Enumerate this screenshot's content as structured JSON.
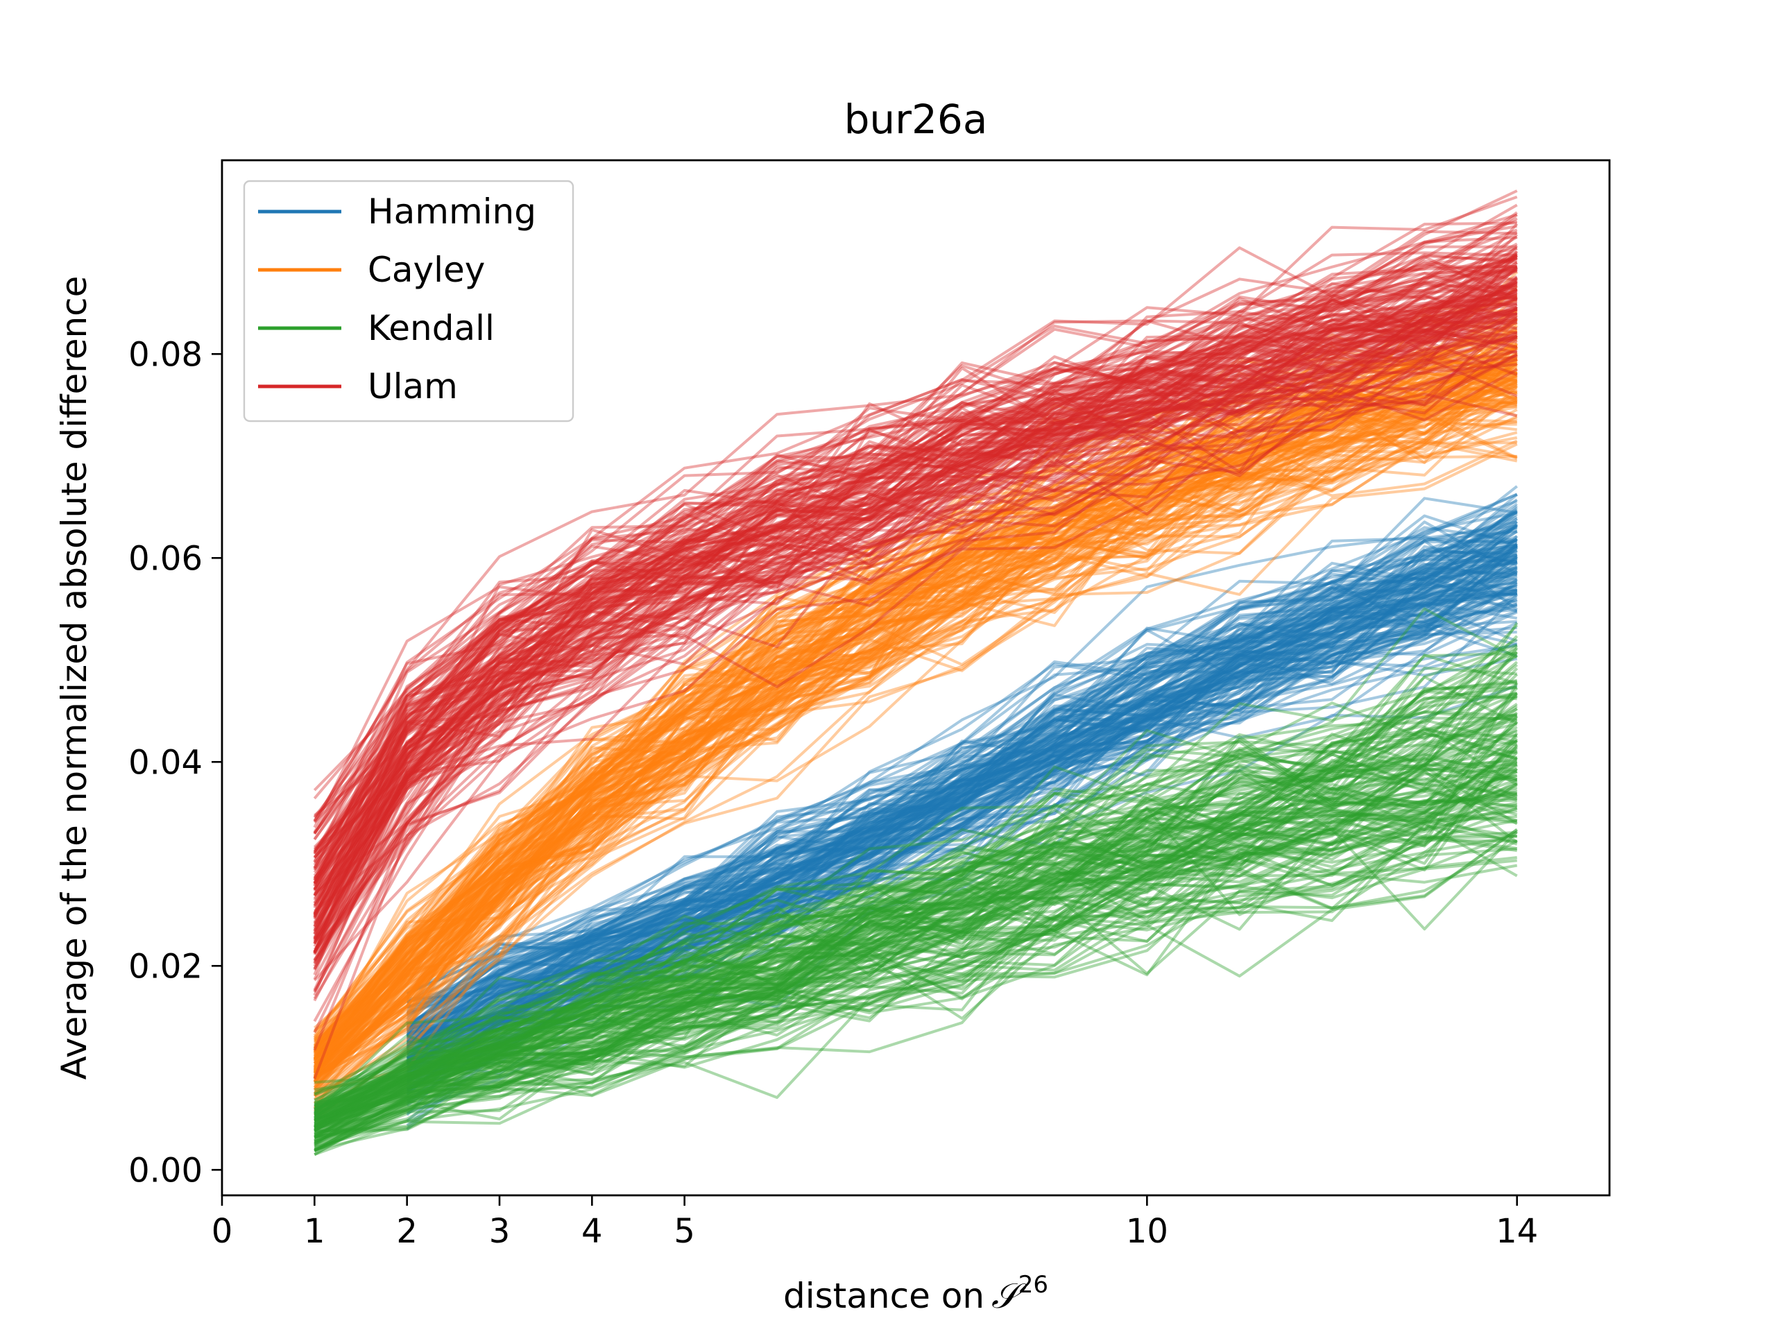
{
  "chart_data": {
    "type": "line",
    "title": "bur26a",
    "xlabel": "distance on",
    "xlabel_symbol": "𝒮",
    "xlabel_superscript": "26",
    "ylabel": "Average of the normalized absolute difference",
    "xlim": [
      0,
      15
    ],
    "ylim": [
      -0.0025,
      0.099
    ],
    "xticks": [
      0,
      1,
      2,
      3,
      4,
      5,
      10,
      14
    ],
    "xtick_labels": [
      "0",
      "1",
      "2",
      "3",
      "4",
      "5",
      "10",
      "14"
    ],
    "yticks": [
      0.0,
      0.02,
      0.04,
      0.06,
      0.08
    ],
    "ytick_labels": [
      "0.00",
      "0.02",
      "0.04",
      "0.06",
      "0.08"
    ],
    "grid": false,
    "legend_position": "top-left",
    "x": [
      1,
      2,
      3,
      4,
      5,
      6,
      7,
      8,
      9,
      10,
      11,
      12,
      13,
      14
    ],
    "series": [
      {
        "name": "Hamming",
        "color": "#1f77b4",
        "x": [
          2,
          3,
          4,
          5,
          6,
          7,
          8,
          9,
          10,
          11,
          12,
          13,
          14
        ],
        "mean": [
          0.0115,
          0.0165,
          0.0205,
          0.024,
          0.028,
          0.0325,
          0.0365,
          0.0415,
          0.046,
          0.0495,
          0.053,
          0.0565,
          0.0595
        ],
        "spread": [
          0.003,
          0.003,
          0.003,
          0.003,
          0.0032,
          0.0032,
          0.0032,
          0.0034,
          0.0034,
          0.0036,
          0.0036,
          0.0036,
          0.0038
        ]
      },
      {
        "name": "Cayley",
        "color": "#ff7f0e",
        "x": [
          1,
          2,
          3,
          4,
          5,
          6,
          7,
          8,
          9,
          10,
          11,
          12,
          13,
          14
        ],
        "mean": [
          0.01,
          0.019,
          0.0285,
          0.036,
          0.0425,
          0.0485,
          0.0535,
          0.0585,
          0.063,
          0.0665,
          0.07,
          0.0735,
          0.076,
          0.0785
        ],
        "spread": [
          0.002,
          0.0032,
          0.0035,
          0.0038,
          0.004,
          0.004,
          0.0042,
          0.0042,
          0.0042,
          0.0042,
          0.0042,
          0.004,
          0.004,
          0.004
        ]
      },
      {
        "name": "Kendall",
        "color": "#2ca02c",
        "x": [
          1,
          2,
          3,
          4,
          5,
          6,
          7,
          8,
          9,
          10,
          11,
          12,
          13,
          14
        ],
        "mean": [
          0.0045,
          0.0085,
          0.0115,
          0.014,
          0.017,
          0.0195,
          0.0225,
          0.025,
          0.0285,
          0.031,
          0.034,
          0.036,
          0.0385,
          0.041
        ],
        "spread": [
          0.0015,
          0.002,
          0.0025,
          0.003,
          0.0032,
          0.0035,
          0.0038,
          0.004,
          0.0042,
          0.0045,
          0.0048,
          0.005,
          0.0052,
          0.0055
        ]
      },
      {
        "name": "Ulam",
        "color": "#d62728",
        "x": [
          1,
          2,
          3,
          4,
          5,
          6,
          7,
          8,
          9,
          10,
          11,
          12,
          13,
          14
        ],
        "mean": [
          0.0255,
          0.0405,
          0.0485,
          0.054,
          0.0585,
          0.0625,
          0.066,
          0.0695,
          0.0725,
          0.0755,
          0.078,
          0.081,
          0.0835,
          0.086
        ],
        "spread": [
          0.005,
          0.0045,
          0.0042,
          0.0042,
          0.0042,
          0.0042,
          0.004,
          0.004,
          0.004,
          0.004,
          0.004,
          0.0038,
          0.0038,
          0.0038
        ]
      }
    ],
    "lines_per_series": 150
  }
}
